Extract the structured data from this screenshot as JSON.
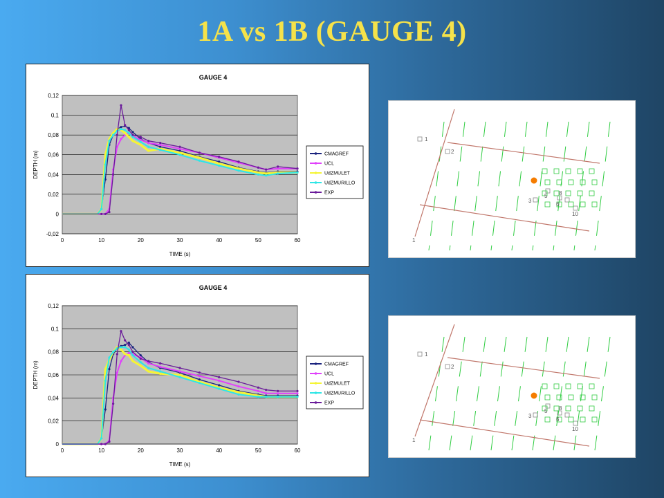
{
  "slide": {
    "title": "1A vs 1B   (GAUGE 4)"
  },
  "colors": {
    "CMAGREF": "#1a237e",
    "UCL": "#e040fb",
    "UdZMULET": "#f5f534",
    "UdZMURILLO": "#2ee6e6",
    "EXP": "#6a1b9a",
    "plot_bg": "#c0c0c0",
    "marker": "#f57c00"
  },
  "chart_data": [
    {
      "type": "line",
      "title": "GAUGE 4",
      "xlabel": "TIME (s)",
      "ylabel": "DEPTH (m)",
      "xlim": [
        0,
        60
      ],
      "ylim": [
        -0.02,
        0.12
      ],
      "xticks": [
        "0",
        "10",
        "20",
        "30",
        "40",
        "50",
        "60"
      ],
      "yticks": [
        "-0,02",
        "0",
        "0,02",
        "0,04",
        "0,06",
        "0,08",
        "0,1",
        "0,12"
      ],
      "legend_position": "right",
      "x": [
        0,
        9,
        10,
        11,
        12,
        13,
        14,
        15,
        16,
        17,
        18,
        20,
        22,
        25,
        30,
        35,
        40,
        45,
        50,
        52,
        55,
        60
      ],
      "series": [
        {
          "name": "CMAGREF",
          "values": [
            0,
            0,
            0.005,
            0.035,
            0.07,
            0.08,
            0.086,
            0.088,
            0.089,
            0.087,
            0.083,
            0.076,
            0.072,
            0.068,
            0.064,
            0.058,
            0.053,
            0.047,
            0.043,
            0.042,
            0.043,
            0.043
          ]
        },
        {
          "name": "UCL",
          "values": [
            0,
            0,
            0,
            0,
            0.005,
            0.045,
            0.068,
            0.076,
            0.08,
            0.082,
            0.079,
            0.075,
            0.072,
            0.07,
            0.066,
            0.062,
            0.057,
            0.052,
            0.047,
            0.045,
            0.046,
            0.046
          ]
        },
        {
          "name": "UdZMULET",
          "values": [
            0,
            0,
            0.005,
            0.06,
            0.076,
            0.082,
            0.086,
            0.085,
            0.082,
            0.078,
            0.074,
            0.07,
            0.064,
            0.066,
            0.062,
            0.057,
            0.051,
            0.046,
            0.042,
            0.041,
            0.042,
            0.042
          ]
        },
        {
          "name": "UdZMURILLO",
          "values": [
            0,
            0,
            0.005,
            0.05,
            0.074,
            0.08,
            0.084,
            0.086,
            0.085,
            0.082,
            0.078,
            0.073,
            0.068,
            0.065,
            0.06,
            0.054,
            0.049,
            0.044,
            0.04,
            0.039,
            0.041,
            0.042
          ]
        },
        {
          "name": "EXP",
          "values": [
            0,
            0,
            0,
            0,
            0.002,
            0.04,
            0.08,
            0.11,
            0.09,
            0.085,
            0.08,
            0.078,
            0.074,
            0.072,
            0.068,
            0.062,
            0.058,
            0.053,
            0.047,
            0.045,
            0.048,
            0.046
          ]
        }
      ]
    },
    {
      "type": "line",
      "title": "GAUGE 4",
      "xlabel": "TIME (s)",
      "ylabel": "DEPTH (m)",
      "xlim": [
        0,
        60
      ],
      "ylim": [
        0,
        0.12
      ],
      "xticks": [
        "0",
        "10",
        "20",
        "30",
        "40",
        "50",
        "60"
      ],
      "yticks": [
        "0",
        "0,02",
        "0,04",
        "0,06",
        "0,08",
        "0,1",
        "0,12"
      ],
      "legend_position": "right",
      "x": [
        0,
        9,
        10,
        11,
        12,
        13,
        14,
        15,
        16,
        17,
        18,
        20,
        22,
        25,
        30,
        35,
        40,
        45,
        50,
        52,
        55,
        60
      ],
      "series": [
        {
          "name": "CMAGREF",
          "values": [
            0,
            0,
            0.005,
            0.03,
            0.065,
            0.078,
            0.083,
            0.085,
            0.086,
            0.088,
            0.084,
            0.077,
            0.071,
            0.066,
            0.062,
            0.056,
            0.051,
            0.046,
            0.043,
            0.042,
            0.042,
            0.042
          ]
        },
        {
          "name": "UCL",
          "values": [
            0,
            0,
            0,
            0,
            0.003,
            0.04,
            0.062,
            0.072,
            0.077,
            0.079,
            0.078,
            0.075,
            0.07,
            0.067,
            0.063,
            0.059,
            0.055,
            0.05,
            0.046,
            0.044,
            0.044,
            0.044
          ]
        },
        {
          "name": "UdZMULET",
          "values": [
            0,
            0,
            0.005,
            0.065,
            0.073,
            0.08,
            0.084,
            0.082,
            0.078,
            0.077,
            0.072,
            0.068,
            0.063,
            0.061,
            0.06,
            0.054,
            0.049,
            0.045,
            0.042,
            0.041,
            0.041,
            0.041
          ]
        },
        {
          "name": "UdZMURILLO",
          "values": [
            0,
            0,
            0.005,
            0.055,
            0.075,
            0.08,
            0.083,
            0.084,
            0.084,
            0.082,
            0.077,
            0.071,
            0.066,
            0.063,
            0.058,
            0.053,
            0.048,
            0.043,
            0.041,
            0.041,
            0.041,
            0.041
          ]
        },
        {
          "name": "EXP",
          "values": [
            0,
            0,
            0,
            0,
            0.002,
            0.035,
            0.078,
            0.098,
            0.09,
            0.086,
            0.08,
            0.074,
            0.072,
            0.07,
            0.066,
            0.062,
            0.058,
            0.054,
            0.049,
            0.047,
            0.046,
            0.046
          ]
        }
      ]
    }
  ],
  "maps": [
    {
      "labels": [
        "1",
        "2",
        "3",
        "5",
        "6",
        "8",
        "10",
        "1"
      ]
    },
    {
      "labels": [
        "1",
        "2",
        "3",
        "5",
        "6",
        "8",
        "10",
        "1"
      ]
    }
  ]
}
